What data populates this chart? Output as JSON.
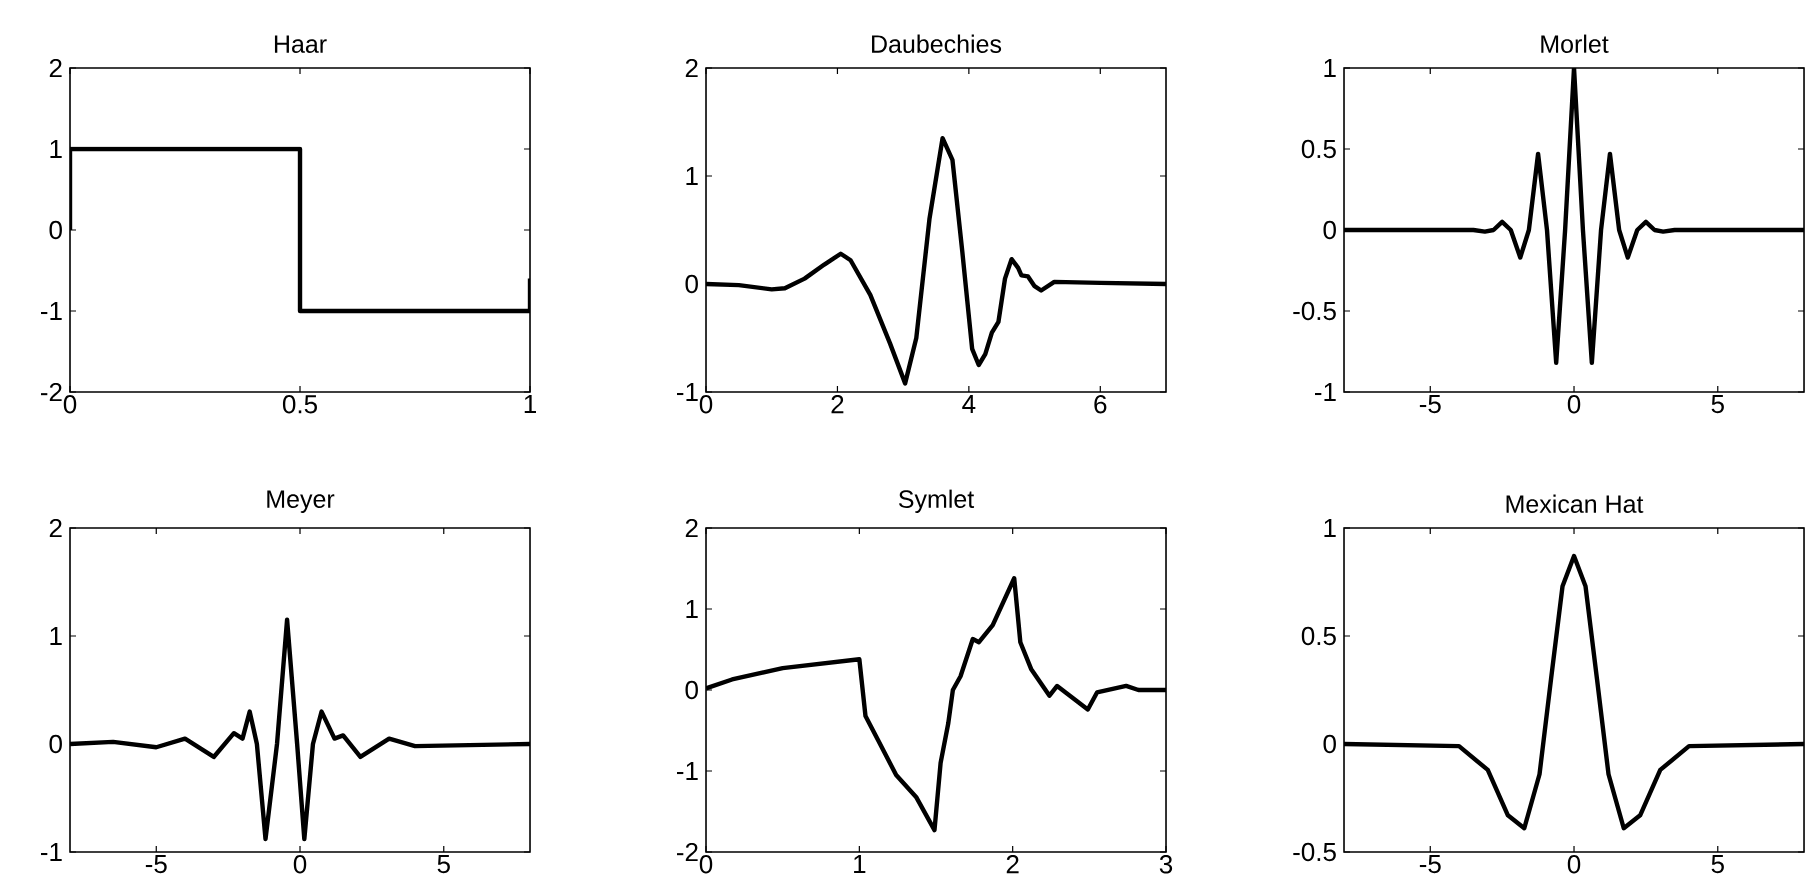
{
  "chart_data": [
    {
      "type": "line",
      "title": "Haar",
      "color": "#000000",
      "xlim": [
        0,
        1
      ],
      "ylim": [
        -2,
        2
      ],
      "xticks": [
        0,
        0.5,
        1
      ],
      "yticks": [
        -2,
        -1,
        0,
        1,
        2
      ],
      "x": [
        0,
        0,
        0.5,
        0.5,
        1,
        1
      ],
      "values": [
        0,
        1,
        1,
        -1,
        -1,
        -0.6
      ]
    },
    {
      "type": "line",
      "title": "Daubechies",
      "color": "#000000",
      "xlim": [
        0,
        7
      ],
      "ylim": [
        -1,
        2
      ],
      "xticks": [
        0,
        2,
        4,
        6
      ],
      "yticks": [
        -1,
        0,
        1,
        2
      ],
      "x": [
        0,
        0.5,
        1.0,
        1.2,
        1.5,
        1.8,
        2.05,
        2.2,
        2.5,
        2.8,
        3.03,
        3.2,
        3.4,
        3.6,
        3.75,
        3.9,
        4.05,
        4.15,
        4.25,
        4.35,
        4.45,
        4.55,
        4.65,
        4.75,
        4.8,
        4.9,
        5.0,
        5.1,
        5.2,
        5.3,
        6,
        7
      ],
      "values": [
        0,
        -0.01,
        -0.05,
        -0.04,
        0.05,
        0.18,
        0.28,
        0.22,
        -0.1,
        -0.55,
        -0.92,
        -0.5,
        0.6,
        1.35,
        1.15,
        0.3,
        -0.6,
        -0.75,
        -0.65,
        -0.45,
        -0.35,
        0.05,
        0.23,
        0.15,
        0.08,
        0.07,
        -0.02,
        -0.06,
        -0.02,
        0.02,
        0.01,
        0
      ]
    },
    {
      "type": "line",
      "title": "Morlet",
      "color": "#000000",
      "xlim": [
        -8,
        8
      ],
      "ylim": [
        -1,
        1
      ],
      "xticks": [
        -5,
        0,
        5
      ],
      "yticks": [
        -1,
        -0.5,
        0,
        0.5,
        1
      ],
      "x": [
        -8,
        -3.5,
        -3.1,
        -2.8,
        -2.5,
        -2.2,
        -1.87,
        -1.57,
        -1.25,
        -0.94,
        -0.62,
        -0.31,
        0,
        0.31,
        0.62,
        0.94,
        1.25,
        1.57,
        1.87,
        2.2,
        2.5,
        2.8,
        3.1,
        3.5,
        8
      ],
      "values": [
        0,
        0,
        -0.01,
        0,
        0.05,
        0,
        -0.17,
        0,
        0.47,
        0,
        -0.82,
        0,
        1,
        0,
        -0.82,
        0,
        0.47,
        0,
        -0.17,
        0,
        0.05,
        0,
        -0.01,
        0,
        0
      ]
    },
    {
      "type": "line",
      "title": "Meyer",
      "color": "#000000",
      "xlim": [
        -8,
        8
      ],
      "ylim": [
        -1,
        2
      ],
      "xticks": [
        -5,
        0,
        5
      ],
      "yticks": [
        -1,
        0,
        1,
        2
      ],
      "x": [
        -8,
        -6.5,
        -5,
        -4,
        -3,
        -2.3,
        -2.0,
        -1.75,
        -1.5,
        -1.2,
        -0.8,
        -0.45,
        -0.1,
        0.15,
        0.45,
        0.75,
        1.2,
        1.5,
        2.1,
        3.1,
        4,
        8
      ],
      "values": [
        0,
        0.02,
        -0.03,
        0.05,
        -0.12,
        0.1,
        0.05,
        0.3,
        0,
        -0.88,
        0,
        1.15,
        0,
        -0.88,
        0,
        0.3,
        0.05,
        0.08,
        -0.12,
        0.05,
        -0.02,
        0
      ]
    },
    {
      "type": "line",
      "title": "Symlet",
      "color": "#000000",
      "xlim": [
        0,
        3
      ],
      "ylim": [
        -2,
        2
      ],
      "xticks": [
        0,
        1,
        2,
        3
      ],
      "yticks": [
        -2,
        -1,
        0,
        1,
        2
      ],
      "x": [
        0,
        0.17,
        0.5,
        1.0,
        1.04,
        1.12,
        1.24,
        1.37,
        1.49,
        1.53,
        1.58,
        1.61,
        1.66,
        1.74,
        1.78,
        1.87,
        2.01,
        2.05,
        2.12,
        2.24,
        2.29,
        2.49,
        2.55,
        2.74,
        2.82,
        3
      ],
      "values": [
        0.02,
        0.13,
        0.27,
        0.38,
        -0.32,
        -0.61,
        -1.05,
        -1.32,
        -1.73,
        -0.9,
        -0.41,
        0,
        0.17,
        0.63,
        0.59,
        0.8,
        1.38,
        0.59,
        0.26,
        -0.07,
        0.05,
        -0.24,
        -0.03,
        0.05,
        0,
        0
      ]
    },
    {
      "type": "line",
      "title": "Mexican Hat",
      "color": "#000000",
      "xlim": [
        -8,
        8
      ],
      "ylim": [
        -0.5,
        1
      ],
      "xticks": [
        -5,
        0,
        5
      ],
      "yticks": [
        -0.5,
        0,
        0.5,
        1
      ],
      "x": [
        -8,
        -4,
        -3,
        -2.3,
        -1.73,
        -1.2,
        -0.8,
        -0.4,
        0,
        0.4,
        0.8,
        1.2,
        1.73,
        2.3,
        3,
        4,
        8
      ],
      "values": [
        0,
        -0.01,
        -0.12,
        -0.33,
        -0.39,
        -0.14,
        0.3,
        0.73,
        0.87,
        0.73,
        0.3,
        -0.14,
        -0.39,
        -0.33,
        -0.12,
        -0.01,
        0
      ]
    }
  ]
}
